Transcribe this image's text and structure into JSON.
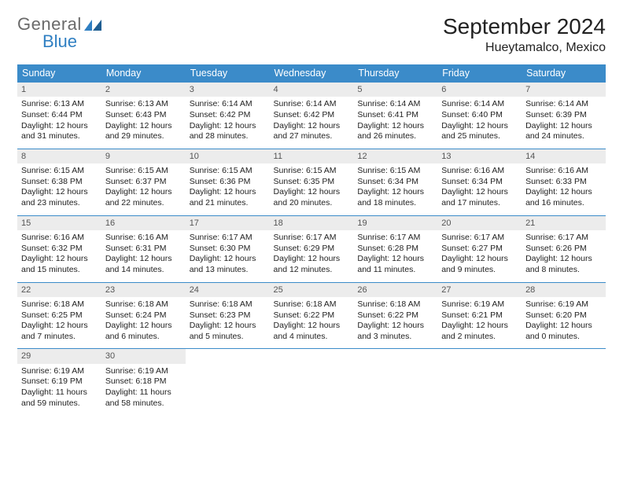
{
  "logo": {
    "text1": "General",
    "text2": "Blue"
  },
  "title": "September 2024",
  "location": "Hueytamalco, Mexico",
  "header_bg": "#3b8bc9",
  "header_fg": "#ffffff",
  "daynum_bg": "#ececec",
  "week_border": "#3b8bc9",
  "day_names": [
    "Sunday",
    "Monday",
    "Tuesday",
    "Wednesday",
    "Thursday",
    "Friday",
    "Saturday"
  ],
  "weeks": [
    [
      {
        "n": "1",
        "sr": "Sunrise: 6:13 AM",
        "ss": "Sunset: 6:44 PM",
        "dl": "Daylight: 12 hours and 31 minutes."
      },
      {
        "n": "2",
        "sr": "Sunrise: 6:13 AM",
        "ss": "Sunset: 6:43 PM",
        "dl": "Daylight: 12 hours and 29 minutes."
      },
      {
        "n": "3",
        "sr": "Sunrise: 6:14 AM",
        "ss": "Sunset: 6:42 PM",
        "dl": "Daylight: 12 hours and 28 minutes."
      },
      {
        "n": "4",
        "sr": "Sunrise: 6:14 AM",
        "ss": "Sunset: 6:42 PM",
        "dl": "Daylight: 12 hours and 27 minutes."
      },
      {
        "n": "5",
        "sr": "Sunrise: 6:14 AM",
        "ss": "Sunset: 6:41 PM",
        "dl": "Daylight: 12 hours and 26 minutes."
      },
      {
        "n": "6",
        "sr": "Sunrise: 6:14 AM",
        "ss": "Sunset: 6:40 PM",
        "dl": "Daylight: 12 hours and 25 minutes."
      },
      {
        "n": "7",
        "sr": "Sunrise: 6:14 AM",
        "ss": "Sunset: 6:39 PM",
        "dl": "Daylight: 12 hours and 24 minutes."
      }
    ],
    [
      {
        "n": "8",
        "sr": "Sunrise: 6:15 AM",
        "ss": "Sunset: 6:38 PM",
        "dl": "Daylight: 12 hours and 23 minutes."
      },
      {
        "n": "9",
        "sr": "Sunrise: 6:15 AM",
        "ss": "Sunset: 6:37 PM",
        "dl": "Daylight: 12 hours and 22 minutes."
      },
      {
        "n": "10",
        "sr": "Sunrise: 6:15 AM",
        "ss": "Sunset: 6:36 PM",
        "dl": "Daylight: 12 hours and 21 minutes."
      },
      {
        "n": "11",
        "sr": "Sunrise: 6:15 AM",
        "ss": "Sunset: 6:35 PM",
        "dl": "Daylight: 12 hours and 20 minutes."
      },
      {
        "n": "12",
        "sr": "Sunrise: 6:15 AM",
        "ss": "Sunset: 6:34 PM",
        "dl": "Daylight: 12 hours and 18 minutes."
      },
      {
        "n": "13",
        "sr": "Sunrise: 6:16 AM",
        "ss": "Sunset: 6:34 PM",
        "dl": "Daylight: 12 hours and 17 minutes."
      },
      {
        "n": "14",
        "sr": "Sunrise: 6:16 AM",
        "ss": "Sunset: 6:33 PM",
        "dl": "Daylight: 12 hours and 16 minutes."
      }
    ],
    [
      {
        "n": "15",
        "sr": "Sunrise: 6:16 AM",
        "ss": "Sunset: 6:32 PM",
        "dl": "Daylight: 12 hours and 15 minutes."
      },
      {
        "n": "16",
        "sr": "Sunrise: 6:16 AM",
        "ss": "Sunset: 6:31 PM",
        "dl": "Daylight: 12 hours and 14 minutes."
      },
      {
        "n": "17",
        "sr": "Sunrise: 6:17 AM",
        "ss": "Sunset: 6:30 PM",
        "dl": "Daylight: 12 hours and 13 minutes."
      },
      {
        "n": "18",
        "sr": "Sunrise: 6:17 AM",
        "ss": "Sunset: 6:29 PM",
        "dl": "Daylight: 12 hours and 12 minutes."
      },
      {
        "n": "19",
        "sr": "Sunrise: 6:17 AM",
        "ss": "Sunset: 6:28 PM",
        "dl": "Daylight: 12 hours and 11 minutes."
      },
      {
        "n": "20",
        "sr": "Sunrise: 6:17 AM",
        "ss": "Sunset: 6:27 PM",
        "dl": "Daylight: 12 hours and 9 minutes."
      },
      {
        "n": "21",
        "sr": "Sunrise: 6:17 AM",
        "ss": "Sunset: 6:26 PM",
        "dl": "Daylight: 12 hours and 8 minutes."
      }
    ],
    [
      {
        "n": "22",
        "sr": "Sunrise: 6:18 AM",
        "ss": "Sunset: 6:25 PM",
        "dl": "Daylight: 12 hours and 7 minutes."
      },
      {
        "n": "23",
        "sr": "Sunrise: 6:18 AM",
        "ss": "Sunset: 6:24 PM",
        "dl": "Daylight: 12 hours and 6 minutes."
      },
      {
        "n": "24",
        "sr": "Sunrise: 6:18 AM",
        "ss": "Sunset: 6:23 PM",
        "dl": "Daylight: 12 hours and 5 minutes."
      },
      {
        "n": "25",
        "sr": "Sunrise: 6:18 AM",
        "ss": "Sunset: 6:22 PM",
        "dl": "Daylight: 12 hours and 4 minutes."
      },
      {
        "n": "26",
        "sr": "Sunrise: 6:18 AM",
        "ss": "Sunset: 6:22 PM",
        "dl": "Daylight: 12 hours and 3 minutes."
      },
      {
        "n": "27",
        "sr": "Sunrise: 6:19 AM",
        "ss": "Sunset: 6:21 PM",
        "dl": "Daylight: 12 hours and 2 minutes."
      },
      {
        "n": "28",
        "sr": "Sunrise: 6:19 AM",
        "ss": "Sunset: 6:20 PM",
        "dl": "Daylight: 12 hours and 0 minutes."
      }
    ],
    [
      {
        "n": "29",
        "sr": "Sunrise: 6:19 AM",
        "ss": "Sunset: 6:19 PM",
        "dl": "Daylight: 11 hours and 59 minutes."
      },
      {
        "n": "30",
        "sr": "Sunrise: 6:19 AM",
        "ss": "Sunset: 6:18 PM",
        "dl": "Daylight: 11 hours and 58 minutes."
      },
      null,
      null,
      null,
      null,
      null
    ]
  ]
}
